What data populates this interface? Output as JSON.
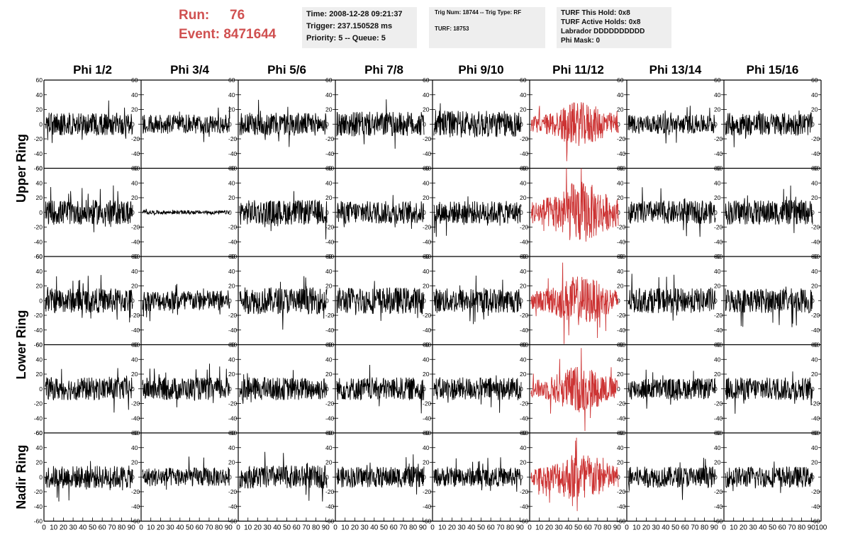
{
  "header": {
    "run_label": "Run:",
    "run_value": "76",
    "event_label": "Event:",
    "event_value": "8471644",
    "time": "Time: 2008-12-28 09:21:37",
    "trigger": "Trigger: 237.150528 ms",
    "priority": "Priority: 5 -- Queue: 5",
    "trig_num": "Trig Num: 18744 -- Trig Type: RF",
    "turf": "TURF: 18753",
    "turf_hold": "TURF This Hold: 0x8",
    "turf_active": "TURF Active Holds: 0x8",
    "labrador": "Labrador DDDDDDDDDD",
    "phi_mask": "Phi Mask: 0"
  },
  "colors": {
    "highlight": "#cc3333",
    "trace": "#000000",
    "accent_text": "#d05050",
    "info_bg": "#eeeeee"
  },
  "chart_data": {
    "type": "line",
    "columns": [
      "Phi 1/2",
      "Phi 3/4",
      "Phi 5/6",
      "Phi 7/8",
      "Phi 9/10",
      "Phi 11/12",
      "Phi 13/14",
      "Phi 15/16"
    ],
    "row_labels": [
      "Upper Ring",
      "Lower Ring",
      "Nadir Ring"
    ],
    "ylim": [
      -60,
      60
    ],
    "yticks": [
      -60,
      -40,
      -20,
      0,
      20,
      40,
      60
    ],
    "xlim": [
      0,
      100
    ],
    "xticks": [
      0,
      10,
      20,
      30,
      40,
      50,
      60,
      70,
      80,
      90,
      100
    ],
    "highlight_column": 5,
    "samples_per_trace": 260,
    "amplitudes": [
      [
        12,
        10,
        12,
        13,
        14,
        14,
        10,
        12
      ],
      [
        13,
        2,
        13,
        12,
        12,
        20,
        12,
        13
      ],
      [
        13,
        11,
        14,
        14,
        13,
        16,
        13,
        13
      ],
      [
        12,
        12,
        12,
        12,
        12,
        15,
        11,
        12
      ],
      [
        12,
        10,
        12,
        11,
        10,
        16,
        11,
        11
      ]
    ]
  }
}
